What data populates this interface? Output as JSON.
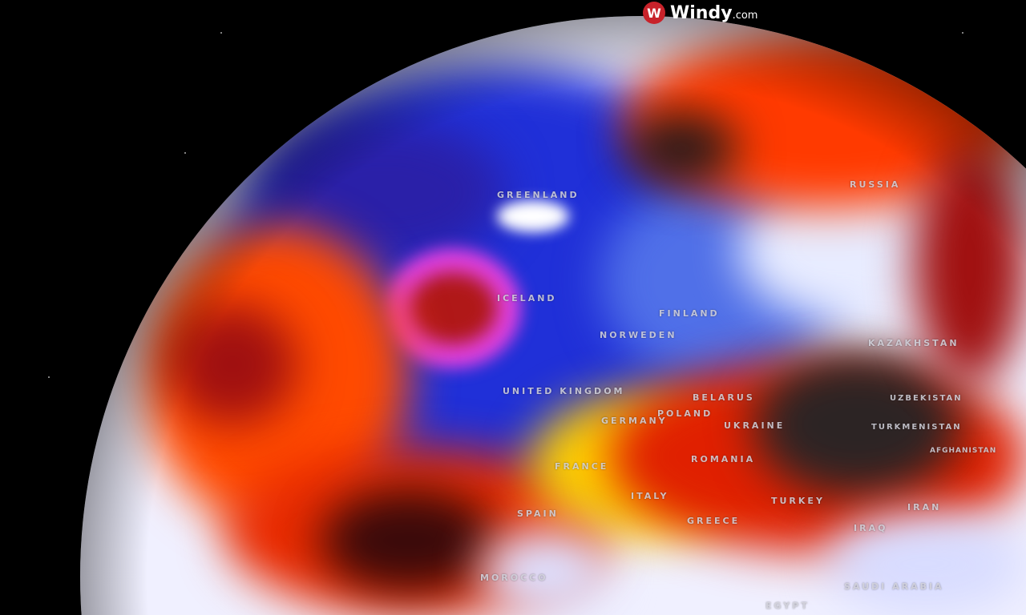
{
  "brand": {
    "icon": "windy-logo-icon",
    "name": "Windy",
    "domain": ".com",
    "color": "#c8222a"
  },
  "map": {
    "type": "globe-temperature-anomaly",
    "colors": {
      "cold_deep": "#1a1ad0",
      "cold": "#3a50e0",
      "neutral": "#e8eaff",
      "warm": "#ffd400",
      "hot": "#ff3a00",
      "very_hot": "#8a0000",
      "extreme": "#2a2a2a",
      "cyclone": "#e040e0"
    },
    "labels": [
      "GREENLAND",
      "RUSSIA",
      "ICELAND",
      "FINLAND",
      "NORWEDEN",
      "UNITED KINGDOM",
      "BELARUS",
      "POLAND",
      "GERMANY",
      "UKRAINE",
      "KAZAKHSTAN",
      "UZBEKISTAN",
      "TURKMENISTAN",
      "AFGHANISTAN",
      "FRANCE",
      "ROMANIA",
      "SPAIN",
      "ITALY",
      "TURKEY",
      "GREECE",
      "IRAN",
      "IRAQ",
      "MOROCCO",
      "SAUDI ARABIA",
      "EGYPT"
    ]
  }
}
